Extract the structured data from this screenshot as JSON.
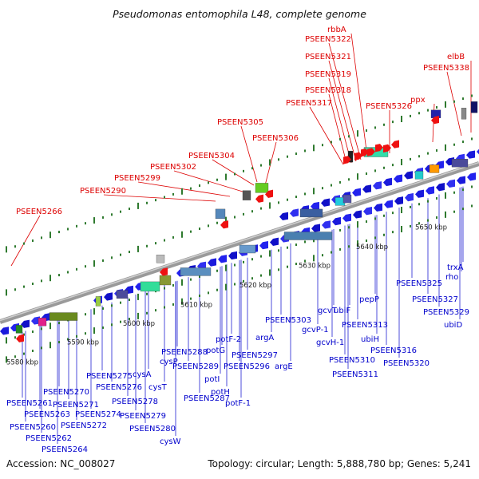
{
  "title": "Pseudomonas entomophila L48, complete genome",
  "accession": "Accession: NC_008027",
  "summary": "Topology: circular; Length: 5,888,780 bp; Genes: 5,241",
  "colors": {
    "top_label": "#dd0000",
    "bottom_label": "#0000cc",
    "backbone": "#7f7f7f",
    "tick": "#2f7a2f"
  },
  "kbp_ticks": [
    "5580 kbp",
    "5590 kbp",
    "5600 kbp",
    "5610 kbp",
    "5620 kbp",
    "5630 kbp",
    "5640 kbp",
    "5650 kbp"
  ],
  "top_labels": [
    "PSEEN5266",
    "PSEEN5290",
    "PSEEN5299",
    "PSEEN5302",
    "PSEEN5304",
    "PSEEN5305",
    "PSEEN5306",
    "PSEEN5317",
    "PSEEN5318",
    "PSEEN5319",
    "PSEEN5321",
    "PSEEN5322",
    "rbbA",
    "PSEEN5326",
    "ppx",
    "PSEEN5338",
    "elbB"
  ],
  "bottom_labels": [
    "PSEEN5261",
    "PSEEN5260",
    "PSEEN5262",
    "PSEEN5263",
    "PSEEN5264",
    "PSEEN5270",
    "PSEEN5271",
    "PSEEN5272",
    "PSEEN5274",
    "PSEEN5275",
    "PSEEN5276",
    "PSEEN5278",
    "PSEEN5279",
    "PSEEN5280",
    "cysW",
    "cysA",
    "cysT",
    "cysP",
    "PSEEN5288",
    "PSEEN5289",
    "PSEEN5287",
    "potG",
    "potI",
    "potH",
    "potF-2",
    "PSEEN5297",
    "PSEEN5296",
    "potF-1",
    "argA",
    "PSEEN5303",
    "argE",
    "gcvT",
    "gcvP-1",
    "gcvH-1",
    "ubiF",
    "PSEEN5310",
    "PSEEN5311",
    "PSEEN5313",
    "pepP",
    "ubiH",
    "PSEEN5316",
    "PSEEN5320",
    "PSEEN5325",
    "PSEEN5327",
    "PSEEN5329",
    "ubiD",
    "trxA",
    "rho"
  ]
}
